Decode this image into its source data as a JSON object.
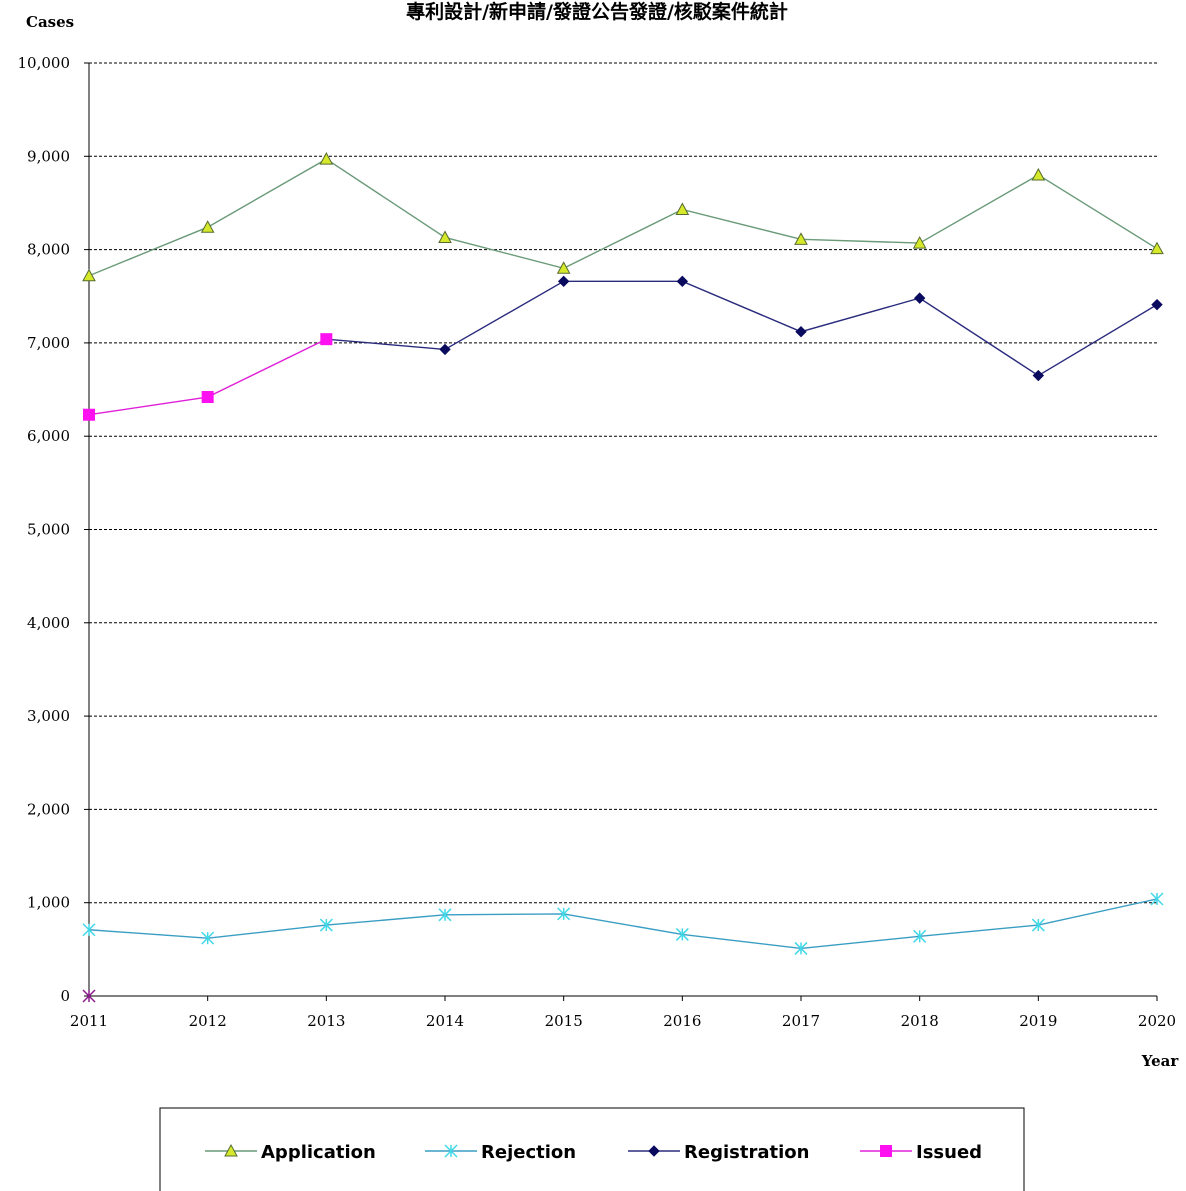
{
  "chart_data": {
    "type": "line",
    "title": "專利設計/新申請/發證公告發證/核駁案件統計",
    "xlabel": "Year",
    "ylabel": "Cases",
    "x": [
      2011,
      2012,
      2013,
      2014,
      2015,
      2016,
      2017,
      2018,
      2019,
      2020
    ],
    "x_tick_labels": [
      "2011",
      "2012",
      "2013",
      "2014",
      "2015",
      "2016",
      "2017",
      "2018",
      "2019",
      "2020"
    ],
    "ylim": [
      0,
      10000
    ],
    "y_ticks": [
      0,
      1000,
      2000,
      3000,
      4000,
      5000,
      6000,
      7000,
      8000,
      9000,
      10000
    ],
    "y_tick_labels": [
      "0",
      "1,000",
      "2,000",
      "3,000",
      "4,000",
      "5,000",
      "6,000",
      "7,000",
      "8,000",
      "9,000",
      "10,000"
    ],
    "grid": "horizontal-dashed",
    "legend_position": "bottom",
    "series": [
      {
        "name": "Application",
        "color": "#6a9a78",
        "marker": "triangle",
        "marker_color": "#d6e82a",
        "values": [
          7720,
          8240,
          8970,
          8130,
          7800,
          8430,
          8110,
          8070,
          8800,
          8010
        ]
      },
      {
        "name": "Rejection",
        "color": "#3a9ec4",
        "marker": "asterisk",
        "marker_color": "#41d8e8",
        "values": [
          710,
          620,
          760,
          870,
          880,
          660,
          510,
          640,
          760,
          1040
        ]
      },
      {
        "name": "Registration",
        "color": "#2b2b7e",
        "marker": "diamond",
        "marker_color": "#0a0a5e",
        "values": [
          null,
          null,
          7040,
          6930,
          7660,
          7660,
          7120,
          7480,
          6650,
          7410
        ]
      },
      {
        "name": "Issued",
        "color": "#e020d8",
        "marker": "square",
        "marker_color": "#ff10f0",
        "values": [
          6230,
          6420,
          7040,
          null,
          null,
          null,
          null,
          null,
          null,
          null
        ]
      }
    ],
    "extra_marker": {
      "x": 2011,
      "y": 0,
      "shape": "asterisk",
      "color": "#8b1a8b"
    }
  }
}
